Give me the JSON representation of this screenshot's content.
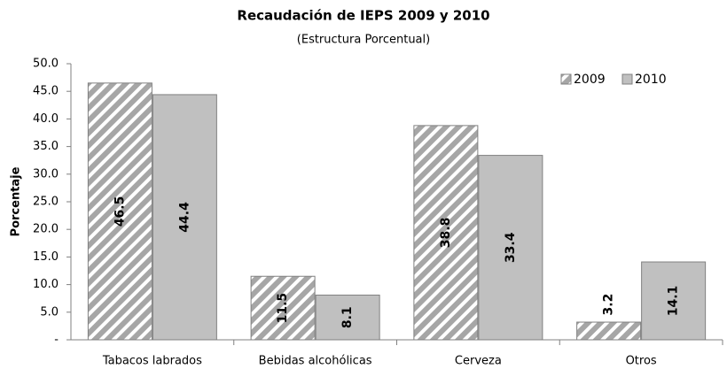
{
  "chart_data": {
    "type": "bar",
    "title": "Recaudación de IEPS 2009 y 2010",
    "subtitle": "(Estructura Porcentual)",
    "y_label": "Porcentaje",
    "categories": [
      "Tabacos labrados",
      "Bebidas alcohólicas",
      "Cerveza",
      "Otros"
    ],
    "series": [
      {
        "name": "2009",
        "color": "#a6a6a6",
        "pattern": "hatch",
        "values": [
          46.5,
          11.5,
          38.8,
          3.2
        ]
      },
      {
        "name": "2010",
        "color": "#c0c0c0",
        "values": [
          44.4,
          8.1,
          33.4,
          14.1
        ]
      }
    ],
    "ylim": [
      0,
      50
    ],
    "yticks": [
      {
        "value": 0,
        "label": "-"
      },
      {
        "value": 5,
        "label": "5.0"
      },
      {
        "value": 10,
        "label": "10.0"
      },
      {
        "value": 15,
        "label": "15.0"
      },
      {
        "value": 20,
        "label": "20.0"
      },
      {
        "value": 25,
        "label": "25.0"
      },
      {
        "value": 30,
        "label": "30.0"
      },
      {
        "value": 35,
        "label": "35.0"
      },
      {
        "value": 40,
        "label": "40.0"
      },
      {
        "value": 45,
        "label": "45.0"
      },
      {
        "value": 50,
        "label": "50.0"
      }
    ],
    "legend": "top-right",
    "grid": false
  }
}
